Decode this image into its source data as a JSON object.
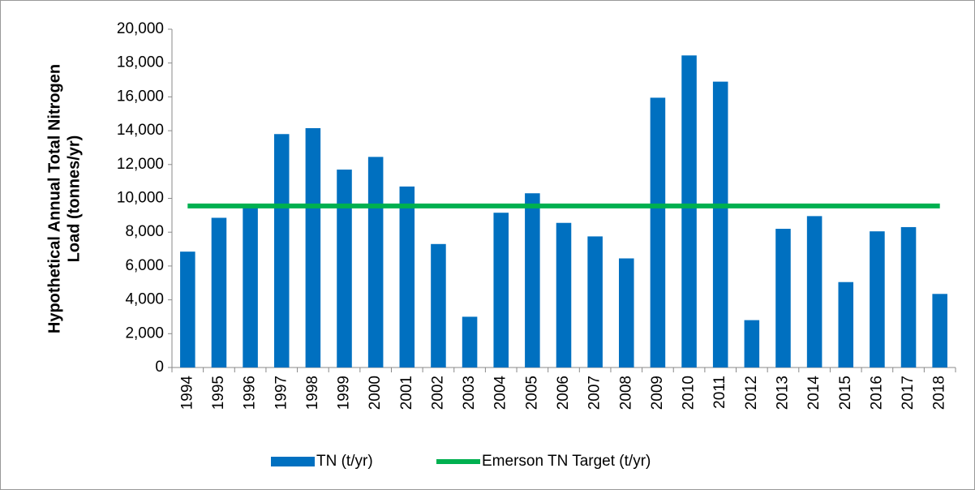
{
  "chart_data": {
    "type": "bar",
    "y_label": [
      "Hypothetical Annual Total Nitrogen",
      "Load (tonnes/yr)"
    ],
    "categories": [
      "1994",
      "1995",
      "1996",
      "1997",
      "1998",
      "1999",
      "2000",
      "2001",
      "2002",
      "2003",
      "2004",
      "2005",
      "2006",
      "2007",
      "2008",
      "2009",
      "2010",
      "2011",
      "2012",
      "2013",
      "2014",
      "2015",
      "2016",
      "2017",
      "2018"
    ],
    "series": [
      {
        "name": "TN (t/yr)",
        "color": "#0070c0",
        "type": "bar",
        "values": [
          6850,
          8850,
          9550,
          13800,
          14150,
          11700,
          12450,
          10700,
          7300,
          3000,
          9150,
          10300,
          8550,
          7750,
          6450,
          15950,
          18450,
          16900,
          2800,
          8200,
          8950,
          5050,
          8050,
          8300,
          4350
        ]
      },
      {
        "name": "Emerson TN Target (t/yr)",
        "color": "#00b050",
        "type": "line",
        "values": [
          9550,
          9550,
          9550,
          9550,
          9550,
          9550,
          9550,
          9550,
          9550,
          9550,
          9550,
          9550,
          9550,
          9550,
          9550,
          9550,
          9550,
          9550,
          9550,
          9550,
          9550,
          9550,
          9550,
          9550,
          9550
        ]
      }
    ],
    "ylim": [
      0,
      20000
    ],
    "yticks": [
      0,
      {
        "value": 2000,
        "label": "2,000"
      },
      {
        "value": 4000,
        "label": "4,000"
      },
      {
        "value": 6000,
        "label": "6,000"
      },
      {
        "value": 8000,
        "label": "8,000"
      },
      {
        "value": 10000,
        "label": "10,000"
      },
      {
        "value": 12000,
        "label": "12,000"
      },
      {
        "value": 14000,
        "label": "14,000"
      },
      {
        "value": 16000,
        "label": "16,000"
      },
      {
        "value": 18000,
        "label": "18,000"
      },
      {
        "value": 20000,
        "label": "20,000"
      }
    ],
    "grid": false,
    "legend": "bottom"
  }
}
